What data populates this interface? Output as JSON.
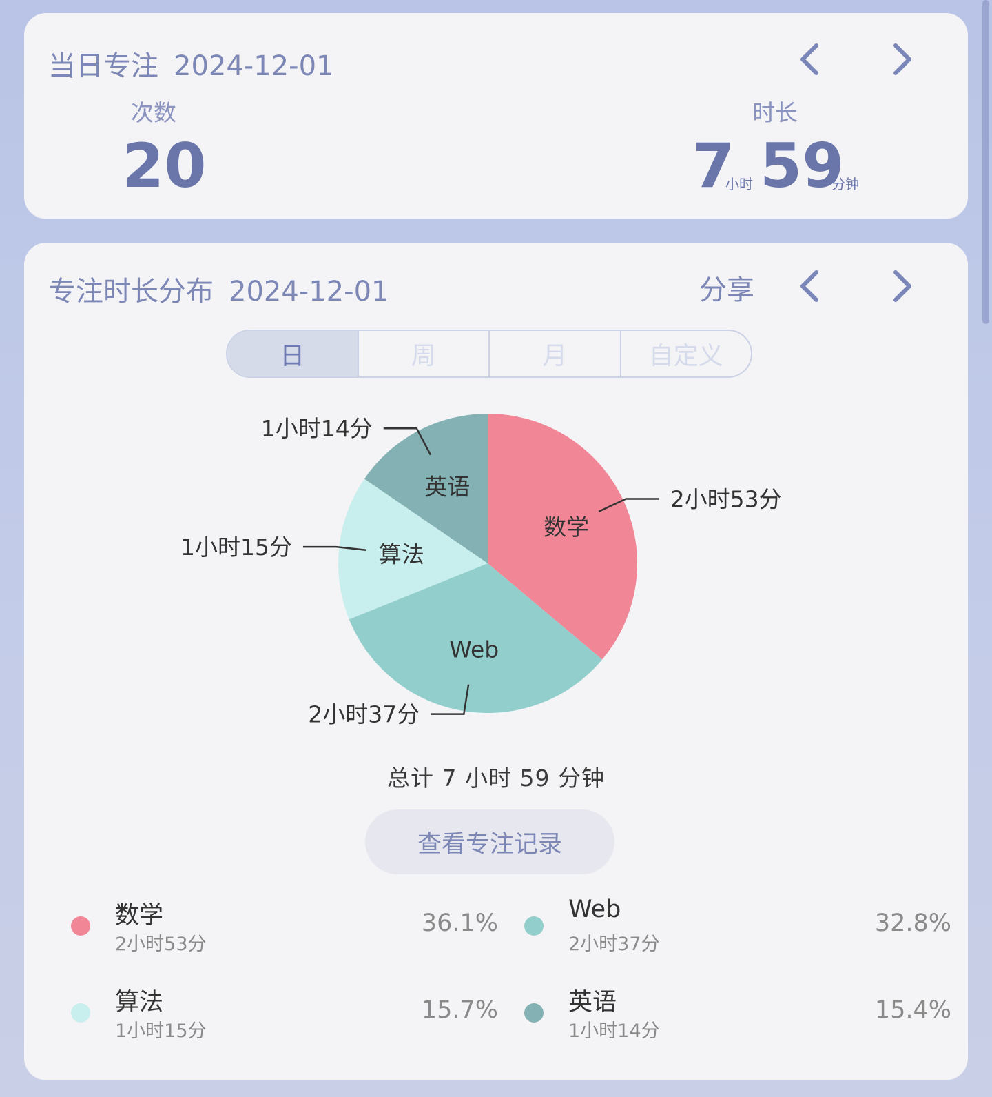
{
  "daily_card": {
    "title": "当日专注",
    "date": "2024-12-01",
    "count_label": "次数",
    "count_value": "20",
    "duration_label": "时长",
    "hours_value": "7",
    "hours_unit": "小时",
    "minutes_value": "59",
    "minutes_unit": "分钟"
  },
  "dist_card": {
    "title": "专注时长分布",
    "date": "2024-12-01",
    "share_label": "分享",
    "segments": [
      "日",
      "周",
      "月",
      "自定义"
    ],
    "active_segment": "日",
    "total_text": "总计 7 小时 59 分钟",
    "record_button": "查看专注记录"
  },
  "chart_data": {
    "type": "pie",
    "slices": [
      {
        "name": "数学",
        "value": 173,
        "display": "2小时53分",
        "percent": "36.1%",
        "color": "#f08696"
      },
      {
        "name": "Web",
        "value": 157,
        "display": "2小时37分",
        "percent": "32.8%",
        "color": "#92cfcc"
      },
      {
        "name": "算法",
        "value": 75,
        "display": "1小时15分",
        "percent": "15.7%",
        "color": "#c8eeee"
      },
      {
        "name": "英语",
        "value": 74,
        "display": "1小时14分",
        "percent": "15.4%",
        "color": "#84b1b3"
      }
    ]
  },
  "legend": [
    {
      "name": "数学",
      "sub": "2小时53分",
      "pct": "36.1%",
      "color": "#f08696"
    },
    {
      "name": "Web",
      "sub": "2小时37分",
      "pct": "32.8%",
      "color": "#92cfcc"
    },
    {
      "name": "算法",
      "sub": "1小时15分",
      "pct": "15.7%",
      "color": "#c8eeee"
    },
    {
      "name": "英语",
      "sub": "1小时14分",
      "pct": "15.4%",
      "color": "#84b1b3"
    }
  ]
}
